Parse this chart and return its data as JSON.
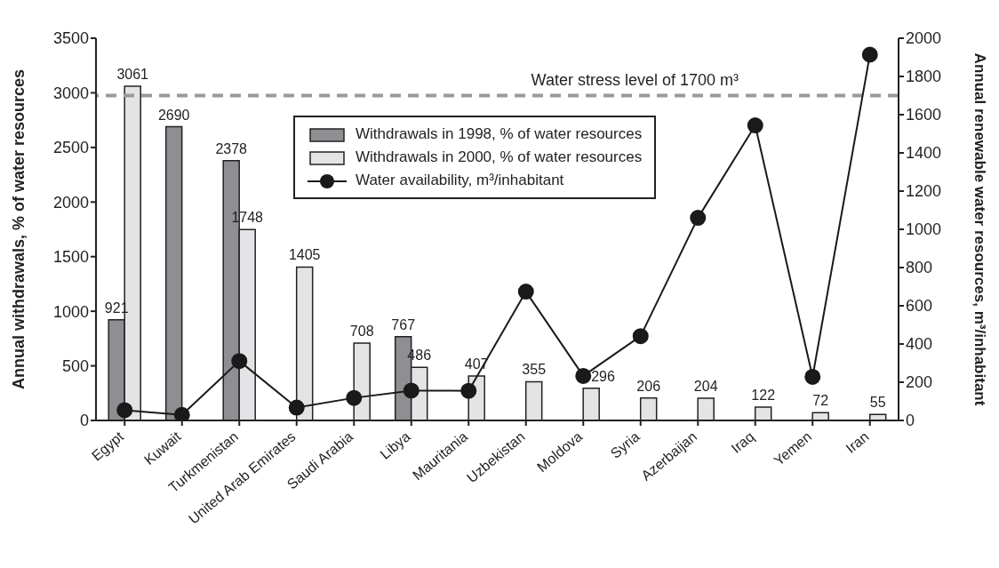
{
  "chart_data": {
    "type": "bar",
    "categories": [
      "Egypt",
      "Kuwait",
      "Turkmenistan",
      "United Arab Emirates",
      "Saudi Arabia",
      "Libya",
      "Mauritania",
      "Uzbekistan",
      "Moldova",
      "Syria",
      "Azerbaijan",
      "Iraq",
      "Yemen",
      "Iran"
    ],
    "series": [
      {
        "name": "Withdrawals in 1998, % of water resources",
        "color": "#8e8e93",
        "values": [
          921,
          2690,
          2378,
          null,
          null,
          767,
          null,
          null,
          null,
          null,
          null,
          null,
          null,
          null
        ],
        "value_labels": [
          "921",
          "2690",
          "2378",
          null,
          null,
          "767",
          null,
          null,
          null,
          null,
          null,
          null,
          null,
          null
        ]
      },
      {
        "name": "Withdrawals in 2000, % of water resources",
        "color": "#e4e4e6",
        "values": [
          3061,
          null,
          1748,
          1405,
          708,
          486,
          407,
          355,
          296,
          206,
          204,
          122,
          72,
          55
        ],
        "value_labels": [
          "3061",
          null,
          "1748",
          "1405",
          "708",
          "486",
          "407",
          "355",
          "296",
          "206",
          "204",
          "122",
          "72",
          "55"
        ]
      },
      {
        "name": "Water availability, m³/inhabitant",
        "type": "line",
        "axis": "y2",
        "color": "#1a1a1a",
        "values": [
          54,
          29,
          311,
          67,
          118,
          156,
          155,
          674,
          233,
          441,
          1060,
          1544,
          228,
          1914
        ]
      }
    ],
    "ylabel": "Annual withdrawals, % of water resources",
    "y2label": "Annual renewable water resources, m³/inhabitant",
    "ylim": [
      0,
      3500
    ],
    "yticks": [
      0,
      500,
      1000,
      1500,
      2000,
      2500,
      3000,
      3500
    ],
    "y2lim": [
      0,
      2000
    ],
    "y2ticks": [
      0,
      200,
      400,
      600,
      800,
      1000,
      1200,
      1400,
      1600,
      1800,
      2000
    ],
    "ref_lines": [
      {
        "axis": "y2",
        "value": 1700,
        "label": "Water stress level of 1700 m³",
        "color": "#9a9a9a",
        "line_style": "dashed"
      }
    ],
    "legend": "top",
    "marker": "circle",
    "line_style": "solid"
  }
}
